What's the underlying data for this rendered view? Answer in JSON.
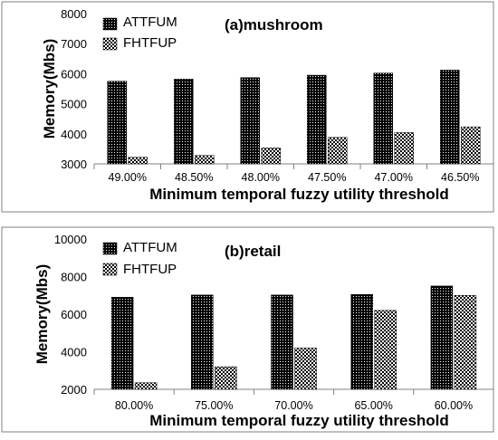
{
  "chart_data": [
    {
      "type": "bar",
      "title": "(a)mushroom",
      "xlabel": "Minimum temporal fuzzy utility threshold",
      "ylabel": "Memory(Mbs)",
      "categories": [
        "49.00%",
        "48.50%",
        "48.00%",
        "47.50%",
        "47.00%",
        "46.50%"
      ],
      "ylim": [
        3000,
        8000
      ],
      "yticks": [
        "3000",
        "4000",
        "5000",
        "6000",
        "7000",
        "8000"
      ],
      "legend_position": "top-left",
      "series": [
        {
          "name": "ATTFUM",
          "values": [
            5750,
            5820,
            5870,
            5950,
            6020,
            6120
          ],
          "pattern": "dense"
        },
        {
          "name": "FHTFUP",
          "values": [
            3220,
            3280,
            3530,
            3880,
            4040,
            4230
          ],
          "pattern": "sparse"
        }
      ]
    },
    {
      "type": "bar",
      "title": "(b)retail",
      "xlabel": "Minimum temporal fuzzy utility threshold",
      "ylabel": "Memory(Mbs)",
      "categories": [
        "80.00%",
        "75.00%",
        "70.00%",
        "65.00%",
        "60.00%"
      ],
      "ylim": [
        2000,
        10000
      ],
      "yticks": [
        "2000",
        "4000",
        "6000",
        "8000",
        "10000"
      ],
      "legend_position": "top-left",
      "series": [
        {
          "name": "ATTFUM",
          "values": [
            6900,
            7020,
            7020,
            7050,
            7500
          ],
          "pattern": "dense"
        },
        {
          "name": "FHTFUP",
          "values": [
            2350,
            3200,
            4200,
            6200,
            7000
          ],
          "pattern": "sparse"
        }
      ]
    }
  ]
}
